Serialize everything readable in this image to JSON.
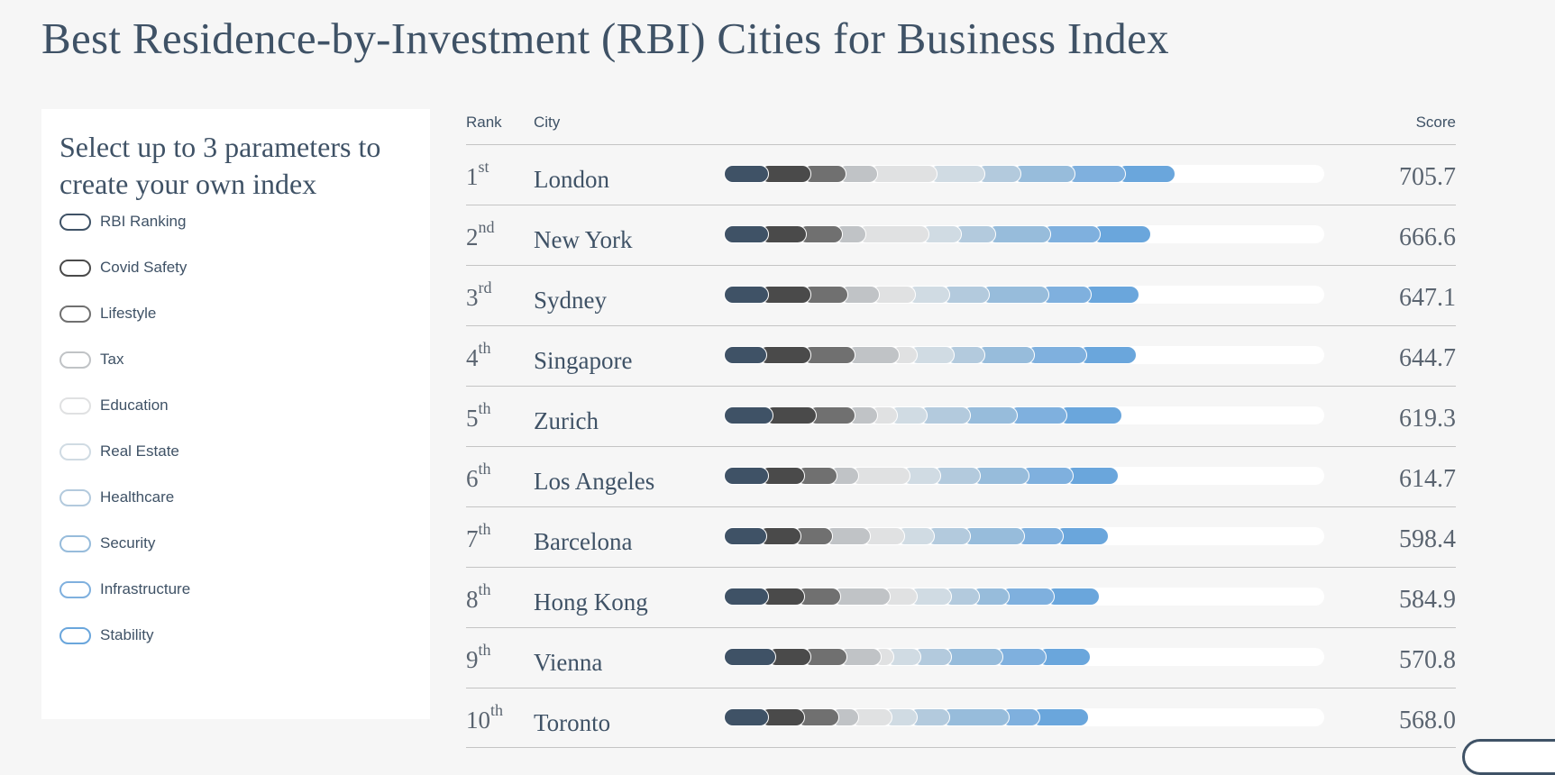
{
  "title": "Best Residence-by-Investment (RBI) Cities for Business Index",
  "panel": {
    "heading": "Select up to 3 parameters to create your own index",
    "params": [
      {
        "label": "RBI Ranking",
        "color": "#3f5266"
      },
      {
        "label": "Covid Safety",
        "color": "#4a4a4a"
      },
      {
        "label": "Lifestyle",
        "color": "#707070"
      },
      {
        "label": "Tax",
        "color": "#c0c3c6"
      },
      {
        "label": "Education",
        "color": "#e0e1e2"
      },
      {
        "label": "Real Estate",
        "color": "#d0dbe3"
      },
      {
        "label": "Healthcare",
        "color": "#b3cadd"
      },
      {
        "label": "Security",
        "color": "#97bcdb"
      },
      {
        "label": "Infrastructure",
        "color": "#7fb0de"
      },
      {
        "label": "Stability",
        "color": "#6aa6dc"
      }
    ]
  },
  "table": {
    "headers": {
      "rank": "Rank",
      "city": "City",
      "score": "Score"
    },
    "scale_max": 938,
    "rows": [
      {
        "rank": "1",
        "suffix": "st",
        "city": "London",
        "score": "705.7",
        "segments": [
          70,
          67,
          54,
          50,
          93,
          74,
          57,
          85,
          78,
          78
        ]
      },
      {
        "rank": "2",
        "suffix": "nd",
        "city": "New York",
        "score": "666.6",
        "segments": [
          70,
          59,
          57,
          36,
          99,
          51,
          54,
          85,
          78,
          78
        ]
      },
      {
        "rank": "3",
        "suffix": "rd",
        "city": "Sydney",
        "score": "647.1",
        "segments": [
          70,
          67,
          57,
          50,
          56,
          54,
          62,
          92,
          67,
          74
        ]
      },
      {
        "rank": "4",
        "suffix": "th",
        "city": "Singapore",
        "score": "644.7",
        "segments": [
          67,
          70,
          68,
          70,
          28,
          57,
          48,
          78,
          81,
          78
        ]
      },
      {
        "rank": "5",
        "suffix": "th",
        "city": "Zurich",
        "score": "619.3",
        "segments": [
          78,
          67,
          60,
          36,
          31,
          47,
          67,
          73,
          78,
          85
        ]
      },
      {
        "rank": "6",
        "suffix": "th",
        "city": "Los Angeles",
        "score": "614.7",
        "segments": [
          70,
          57,
          51,
          33,
          81,
          47,
          62,
          76,
          70,
          70
        ]
      },
      {
        "rank": "7",
        "suffix": "th",
        "city": "Barcelona",
        "score": "598.4",
        "segments": [
          67,
          54,
          50,
          59,
          53,
          47,
          56,
          85,
          60,
          70
        ]
      },
      {
        "rank": "8",
        "suffix": "th",
        "city": "Hong Kong",
        "score": "584.9",
        "segments": [
          70,
          57,
          56,
          78,
          42,
          54,
          43,
          47,
          70,
          70
        ]
      },
      {
        "rank": "9",
        "suffix": "th",
        "city": "Vienna",
        "score": "570.8",
        "segments": [
          82,
          54,
          57,
          54,
          19,
          43,
          47,
          81,
          67,
          70
        ]
      },
      {
        "rank": "10",
        "suffix": "th",
        "city": "Toronto",
        "score": "568.0",
        "segments": [
          70,
          57,
          53,
          31,
          53,
          39,
          51,
          93,
          47,
          76
        ]
      }
    ]
  }
}
